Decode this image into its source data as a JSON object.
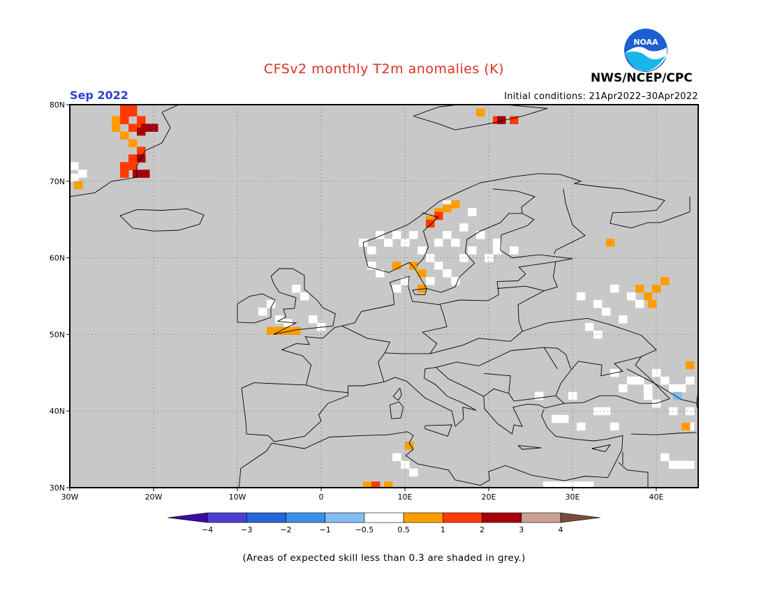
{
  "header": {
    "title": "CFSv2 monthly T2m anomalies (K)",
    "agency": "NWS/NCEP/CPC",
    "logo_text": "NOAA",
    "month": "Sep 2022",
    "initial_conditions": "Initial conditions: 21Apr2022–30Apr2022"
  },
  "map": {
    "region": "Europe",
    "lon_range": [
      -30,
      45
    ],
    "lat_range": [
      30,
      80
    ],
    "background_color": "#c8c8c8",
    "coastline_color": "#000000",
    "gridline_style": "dotted",
    "lon_ticks": [
      "30W",
      "20W",
      "10W",
      "0",
      "10E",
      "20E",
      "30E",
      "40E"
    ],
    "lat_ticks": [
      "30N",
      "40N",
      "50N",
      "60N",
      "70N",
      "80N"
    ]
  },
  "anomaly_cells": {
    "white": [
      [
        -29.5,
        72
      ],
      [
        -29.5,
        70.5
      ],
      [
        -28.5,
        71
      ],
      [
        -7,
        53
      ],
      [
        -6,
        54
      ],
      [
        -5,
        52
      ],
      [
        -4,
        51.5
      ],
      [
        -2,
        55
      ],
      [
        -1,
        52
      ],
      [
        0,
        51
      ],
      [
        -3,
        56
      ],
      [
        5,
        62
      ],
      [
        6,
        61
      ],
      [
        7,
        63
      ],
      [
        8,
        62
      ],
      [
        9,
        63
      ],
      [
        10,
        62
      ],
      [
        11,
        63
      ],
      [
        12,
        61
      ],
      [
        13,
        60
      ],
      [
        14,
        62
      ],
      [
        15,
        63
      ],
      [
        16,
        62
      ],
      [
        17,
        64
      ],
      [
        18,
        61
      ],
      [
        19,
        63
      ],
      [
        20,
        60
      ],
      [
        21,
        62
      ],
      [
        12,
        58
      ],
      [
        13,
        57
      ],
      [
        14,
        59
      ],
      [
        15,
        58
      ],
      [
        16,
        57
      ],
      [
        17,
        60
      ],
      [
        7,
        58
      ],
      [
        6,
        59
      ],
      [
        10,
        57
      ],
      [
        9,
        56
      ],
      [
        18,
        66
      ],
      [
        21,
        61
      ],
      [
        23,
        61
      ],
      [
        15,
        67
      ],
      [
        31,
        55
      ],
      [
        33,
        54
      ],
      [
        35,
        56
      ],
      [
        37,
        55
      ],
      [
        34,
        53
      ],
      [
        36,
        52
      ],
      [
        32,
        51
      ],
      [
        33,
        50
      ],
      [
        38,
        54
      ],
      [
        35,
        45
      ],
      [
        37,
        44
      ],
      [
        38,
        44
      ],
      [
        39,
        43
      ],
      [
        40,
        45
      ],
      [
        41,
        44
      ],
      [
        42,
        43
      ],
      [
        43,
        43
      ],
      [
        44,
        44
      ],
      [
        36,
        43
      ],
      [
        39,
        42
      ],
      [
        40,
        41
      ],
      [
        42,
        40
      ],
      [
        44,
        40
      ],
      [
        26,
        42
      ],
      [
        30,
        42
      ],
      [
        33,
        40
      ],
      [
        34,
        40
      ],
      [
        28,
        39
      ],
      [
        29,
        39
      ],
      [
        31,
        38
      ],
      [
        35,
        38
      ],
      [
        44,
        38
      ],
      [
        10,
        33
      ],
      [
        11,
        32
      ],
      [
        9,
        34
      ],
      [
        27,
        30.3
      ],
      [
        28,
        30.3
      ],
      [
        29,
        30.3
      ],
      [
        30,
        30.3
      ],
      [
        31,
        30.3
      ],
      [
        32,
        30.3
      ],
      [
        42,
        33
      ],
      [
        43,
        33
      ],
      [
        44,
        33
      ],
      [
        41,
        34
      ]
    ],
    "light_blue": [
      [
        42.5,
        42
      ]
    ],
    "orange": [
      [
        -24.5,
        78
      ],
      [
        -24.5,
        77
      ],
      [
        -23.5,
        76
      ],
      [
        -22.5,
        75
      ],
      [
        -29,
        69.5
      ],
      [
        -6,
        50.5
      ],
      [
        -5,
        50.5
      ],
      [
        -4,
        50.5
      ],
      [
        -3,
        50.5
      ],
      [
        13,
        65
      ],
      [
        14,
        66
      ],
      [
        15,
        66.5
      ],
      [
        16,
        67
      ],
      [
        9,
        59
      ],
      [
        11,
        59
      ],
      [
        12,
        58
      ],
      [
        12,
        56
      ],
      [
        19,
        79
      ],
      [
        34.5,
        62
      ],
      [
        38,
        56
      ],
      [
        39,
        55
      ],
      [
        40,
        56
      ],
      [
        41,
        57
      ],
      [
        39.5,
        54
      ],
      [
        44,
        46
      ],
      [
        43.5,
        38
      ],
      [
        10.5,
        35.5
      ],
      [
        5.5,
        30.3
      ],
      [
        8,
        30.3
      ]
    ],
    "red": [
      [
        -23.5,
        80
      ],
      [
        -22.5,
        80
      ],
      [
        -23.5,
        79
      ],
      [
        -22.5,
        79
      ],
      [
        -23.5,
        78
      ],
      [
        -21.5,
        78
      ],
      [
        -22.5,
        77
      ],
      [
        -21.5,
        77
      ],
      [
        -23.5,
        72
      ],
      [
        -22.5,
        72
      ],
      [
        -23.5,
        71
      ],
      [
        -21.5,
        74
      ],
      [
        -22.5,
        73
      ],
      [
        14,
        65.5
      ],
      [
        13,
        64.5
      ],
      [
        21,
        78
      ],
      [
        23,
        78
      ],
      [
        6.5,
        30.3
      ]
    ],
    "dark_red": [
      [
        -21,
        77
      ],
      [
        -20,
        77
      ],
      [
        -21.5,
        76.5
      ],
      [
        -22,
        71
      ],
      [
        -21,
        71
      ],
      [
        -21.5,
        73
      ],
      [
        21.5,
        78
      ]
    ]
  },
  "legend": {
    "colors": [
      "#3a0ea5",
      "#4b3fd0",
      "#2466d8",
      "#3c8fe6",
      "#83bdf2",
      "#ffffff",
      "#ff9d00",
      "#ff3a00",
      "#a50009",
      "#c9a193",
      "#7a4a3c"
    ],
    "tick_labels": [
      "−4",
      "−3",
      "−2",
      "−1",
      "−0.5",
      "0.5",
      "1",
      "2",
      "3",
      "4"
    ]
  },
  "footnote": "(Areas of expected skill less than 0.3 are shaded in grey.)"
}
